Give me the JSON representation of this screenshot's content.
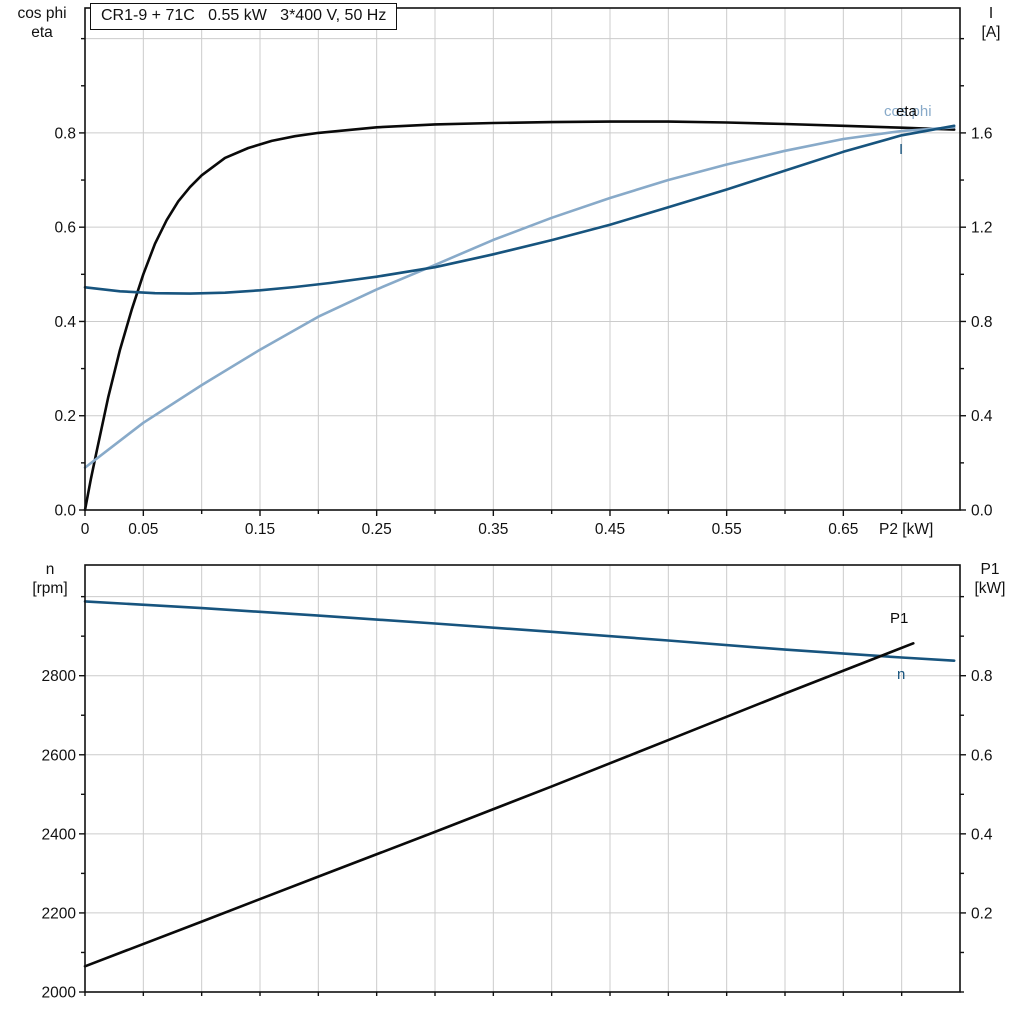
{
  "title_box": {
    "text": "CR1-9 + 71C   0.55 kW   3*400 V, 50 Hz"
  },
  "labels": {
    "top_left_axis": [
      "cos phi",
      "eta"
    ],
    "top_right_axis": [
      "I",
      "[A]"
    ],
    "x_axis": "P2 [kW]",
    "curve_eta": "eta",
    "curve_cos_phi": "cos phi",
    "curve_current": "I",
    "bottom_left_axis": [
      "n",
      "[rpm]"
    ],
    "bottom_right_axis": [
      "P1",
      "[kW]"
    ],
    "curve_p1": "P1",
    "curve_n": "n"
  },
  "colors": {
    "black": "#0a0a0a",
    "dark_blue": "#17547e",
    "light_blue": "#88aac9",
    "grid": "#cccccc",
    "axis": "#111111"
  },
  "chart_data": [
    {
      "type": "line",
      "title": "CR1-9 + 71C   0.55 kW   3*400 V, 50 Hz",
      "xlabel": "P2 [kW]",
      "ylabel_left": "cos phi / eta",
      "ylabel_right": "I [A]",
      "xlim": [
        0,
        0.75
      ],
      "ylim_left": [
        0,
        1.065
      ],
      "ylim_right": [
        0,
        2.13
      ],
      "grid": true,
      "legend_position": "inline-right",
      "x_ticks": [
        [
          0,
          "0"
        ],
        [
          0.05,
          "0.05"
        ],
        [
          0.1,
          ""
        ],
        [
          0.15,
          "0.15"
        ],
        [
          0.2,
          ""
        ],
        [
          0.25,
          "0.25"
        ],
        [
          0.3,
          ""
        ],
        [
          0.35,
          "0.35"
        ],
        [
          0.4,
          ""
        ],
        [
          0.45,
          "0.45"
        ],
        [
          0.5,
          ""
        ],
        [
          0.55,
          "0.55"
        ],
        [
          0.6,
          ""
        ],
        [
          0.65,
          "0.65"
        ],
        [
          0.7,
          ""
        ]
      ],
      "y_ticks_left": [
        [
          0,
          "0.0"
        ],
        [
          0.1,
          ""
        ],
        [
          0.2,
          "0.2"
        ],
        [
          0.3,
          ""
        ],
        [
          0.4,
          "0.4"
        ],
        [
          0.5,
          ""
        ],
        [
          0.6,
          "0.6"
        ],
        [
          0.7,
          ""
        ],
        [
          0.8,
          "0.8"
        ],
        [
          0.9,
          ""
        ],
        [
          1.0,
          ""
        ]
      ],
      "y_ticks_right": [
        [
          0,
          "0.0"
        ],
        [
          0.2,
          ""
        ],
        [
          0.4,
          "0.4"
        ],
        [
          0.6,
          ""
        ],
        [
          0.8,
          "0.8"
        ],
        [
          1.0,
          ""
        ],
        [
          1.2,
          "1.2"
        ],
        [
          1.4,
          ""
        ],
        [
          1.6,
          "1.6"
        ],
        [
          1.8,
          ""
        ],
        [
          2.0,
          ""
        ]
      ],
      "y_gridlines": [
        0.2,
        0.4,
        0.6,
        0.8,
        1.0
      ],
      "series": [
        {
          "name": "eta",
          "axis": "left",
          "color_key": "black",
          "points": [
            [
              0,
              0
            ],
            [
              0.005,
              0.065
            ],
            [
              0.01,
              0.125
            ],
            [
              0.02,
              0.24
            ],
            [
              0.03,
              0.34
            ],
            [
              0.04,
              0.425
            ],
            [
              0.05,
              0.5
            ],
            [
              0.06,
              0.565
            ],
            [
              0.07,
              0.615
            ],
            [
              0.08,
              0.655
            ],
            [
              0.09,
              0.685
            ],
            [
              0.1,
              0.71
            ],
            [
              0.12,
              0.747
            ],
            [
              0.14,
              0.768
            ],
            [
              0.16,
              0.783
            ],
            [
              0.18,
              0.793
            ],
            [
              0.2,
              0.8
            ],
            [
              0.25,
              0.812
            ],
            [
              0.3,
              0.818
            ],
            [
              0.35,
              0.821
            ],
            [
              0.4,
              0.823
            ],
            [
              0.45,
              0.824
            ],
            [
              0.5,
              0.824
            ],
            [
              0.55,
              0.822
            ],
            [
              0.6,
              0.819
            ],
            [
              0.65,
              0.815
            ],
            [
              0.7,
              0.811
            ],
            [
              0.745,
              0.807
            ]
          ]
        },
        {
          "name": "cos phi",
          "axis": "left",
          "color_key": "light_blue",
          "points": [
            [
              0,
              0.09
            ],
            [
              0.05,
              0.185
            ],
            [
              0.1,
              0.265
            ],
            [
              0.15,
              0.34
            ],
            [
              0.2,
              0.41
            ],
            [
              0.25,
              0.468
            ],
            [
              0.3,
              0.52
            ],
            [
              0.35,
              0.573
            ],
            [
              0.4,
              0.62
            ],
            [
              0.45,
              0.662
            ],
            [
              0.5,
              0.7
            ],
            [
              0.55,
              0.733
            ],
            [
              0.6,
              0.762
            ],
            [
              0.65,
              0.787
            ],
            [
              0.7,
              0.804
            ],
            [
              0.745,
              0.812
            ]
          ]
        },
        {
          "name": "I",
          "axis": "right",
          "color_key": "dark_blue",
          "points": [
            [
              0,
              0.945
            ],
            [
              0.03,
              0.928
            ],
            [
              0.06,
              0.92
            ],
            [
              0.09,
              0.918
            ],
            [
              0.12,
              0.922
            ],
            [
              0.15,
              0.932
            ],
            [
              0.18,
              0.946
            ],
            [
              0.21,
              0.963
            ],
            [
              0.25,
              0.99
            ],
            [
              0.3,
              1.03
            ],
            [
              0.35,
              1.085
            ],
            [
              0.4,
              1.145
            ],
            [
              0.45,
              1.21
            ],
            [
              0.5,
              1.285
            ],
            [
              0.55,
              1.36
            ],
            [
              0.6,
              1.44
            ],
            [
              0.65,
              1.52
            ],
            [
              0.7,
              1.59
            ],
            [
              0.745,
              1.63
            ]
          ]
        }
      ]
    },
    {
      "type": "line",
      "title": "",
      "xlabel": "",
      "ylabel_left": "n [rpm]",
      "ylabel_right": "P1 [kW]",
      "xlim": [
        0,
        0.75
      ],
      "ylim_left": [
        2000,
        3080
      ],
      "ylim_right": [
        0,
        1.08
      ],
      "grid": true,
      "legend_position": "inline-right",
      "x_ticks": [
        [
          0,
          ""
        ],
        [
          0.05,
          ""
        ],
        [
          0.1,
          ""
        ],
        [
          0.15,
          ""
        ],
        [
          0.2,
          ""
        ],
        [
          0.25,
          ""
        ],
        [
          0.3,
          ""
        ],
        [
          0.35,
          ""
        ],
        [
          0.4,
          ""
        ],
        [
          0.45,
          ""
        ],
        [
          0.5,
          ""
        ],
        [
          0.55,
          ""
        ],
        [
          0.6,
          ""
        ],
        [
          0.65,
          ""
        ],
        [
          0.7,
          ""
        ]
      ],
      "y_ticks_left": [
        [
          2000,
          "2000"
        ],
        [
          2100,
          ""
        ],
        [
          2200,
          "2200"
        ],
        [
          2300,
          ""
        ],
        [
          2400,
          "2400"
        ],
        [
          2500,
          ""
        ],
        [
          2600,
          "2600"
        ],
        [
          2700,
          ""
        ],
        [
          2800,
          "2800"
        ],
        [
          2900,
          ""
        ],
        [
          3000,
          ""
        ]
      ],
      "y_ticks_right": [
        [
          0,
          ""
        ],
        [
          0.1,
          ""
        ],
        [
          0.2,
          "0.2"
        ],
        [
          0.3,
          ""
        ],
        [
          0.4,
          "0.4"
        ],
        [
          0.5,
          ""
        ],
        [
          0.6,
          "0.6"
        ],
        [
          0.7,
          ""
        ],
        [
          0.8,
          "0.8"
        ],
        [
          0.9,
          ""
        ],
        [
          1.0,
          ""
        ]
      ],
      "y_gridlines": [
        2200,
        2400,
        2600,
        2800,
        3000
      ],
      "series": [
        {
          "name": "n",
          "axis": "left",
          "color_key": "dark_blue",
          "points": [
            [
              0,
              2988
            ],
            [
              0.1,
              2971
            ],
            [
              0.2,
              2952
            ],
            [
              0.3,
              2932
            ],
            [
              0.4,
              2911
            ],
            [
              0.5,
              2889
            ],
            [
              0.6,
              2866
            ],
            [
              0.7,
              2846
            ],
            [
              0.745,
              2838
            ]
          ]
        },
        {
          "name": "P1",
          "axis": "right",
          "color_key": "black",
          "points": [
            [
              0,
              0.065
            ],
            [
              0.1,
              0.178
            ],
            [
              0.2,
              0.292
            ],
            [
              0.3,
              0.405
            ],
            [
              0.4,
              0.52
            ],
            [
              0.5,
              0.637
            ],
            [
              0.6,
              0.755
            ],
            [
              0.71,
              0.882
            ]
          ]
        }
      ]
    }
  ]
}
